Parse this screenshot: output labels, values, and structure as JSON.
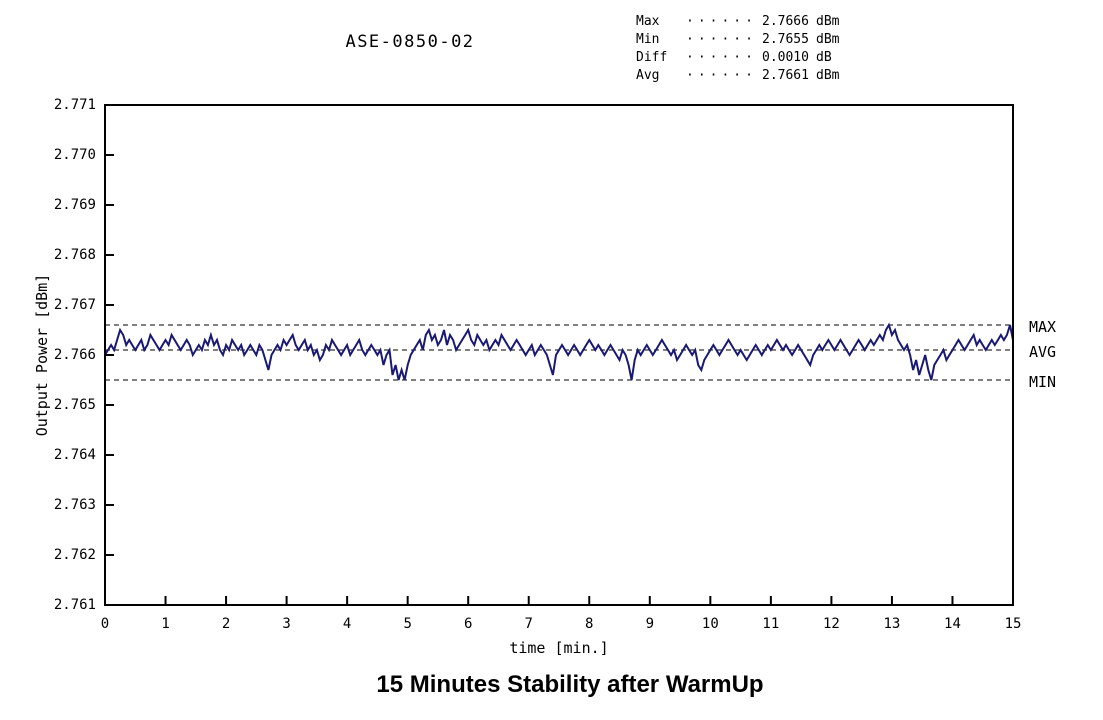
{
  "header": {
    "title": "ASE-0850-02"
  },
  "stats": {
    "rows": [
      {
        "label": "Max",
        "dots": "······",
        "value": "2.7666",
        "unit": "dBm"
      },
      {
        "label": "Min",
        "dots": "······",
        "value": "2.7655",
        "unit": "dBm"
      },
      {
        "label": "Diff",
        "dots": "······",
        "value": "0.0010",
        "unit": "dB"
      },
      {
        "label": "Avg",
        "dots": "······",
        "value": "2.7661",
        "unit": "dBm"
      }
    ]
  },
  "footer": {
    "title": "15 Minutes Stability after WarmUp"
  },
  "chart_data": {
    "type": "line",
    "title": "ASE-0850-02",
    "xlabel": "time [min.]",
    "ylabel": "Output Power [dBm]",
    "xlim": [
      0,
      15
    ],
    "ylim": [
      2.761,
      2.771
    ],
    "xticks": [
      "0",
      "1",
      "2",
      "3",
      "4",
      "5",
      "6",
      "7",
      "8",
      "9",
      "10",
      "11",
      "12",
      "13",
      "14",
      "15"
    ],
    "yticks": [
      "2.761",
      "2.762",
      "2.763",
      "2.764",
      "2.765",
      "2.766",
      "2.767",
      "2.768",
      "2.769",
      "2.770",
      "2.771"
    ],
    "grid": false,
    "legend": "none",
    "stats": {
      "max_dbm": 2.7666,
      "min_dbm": 2.7655,
      "diff_db": 0.001,
      "avg_dbm": 2.7661
    },
    "ref_lines": [
      {
        "label": "MAX",
        "value": 2.7666
      },
      {
        "label": "AVG",
        "value": 2.7661
      },
      {
        "label": "MIN",
        "value": 2.7655
      }
    ],
    "x_start": 0,
    "x_step_min": 0.05,
    "series": [
      {
        "name": "Output Power",
        "color": "#191975",
        "y_base": 2.766,
        "y_step": 0.0001,
        "offsets": [
          0,
          1,
          2,
          1,
          3,
          5,
          4,
          2,
          3,
          2,
          1,
          2,
          3,
          1,
          2,
          4,
          3,
          2,
          1,
          2,
          3,
          2,
          4,
          3,
          2,
          1,
          2,
          3,
          2,
          0,
          1,
          2,
          1,
          3,
          2,
          4,
          2,
          3,
          1,
          0,
          2,
          1,
          3,
          2,
          1,
          2,
          0,
          1,
          2,
          1,
          0,
          2,
          1,
          -1,
          -3,
          0,
          1,
          2,
          1,
          3,
          2,
          3,
          4,
          2,
          1,
          2,
          3,
          1,
          2,
          0,
          1,
          -1,
          0,
          2,
          1,
          3,
          2,
          1,
          0,
          1,
          2,
          0,
          1,
          2,
          3,
          1,
          0,
          1,
          2,
          1,
          0,
          1,
          -2,
          0,
          1,
          -4,
          -2,
          -5,
          -3,
          -5,
          -2,
          0,
          1,
          2,
          3,
          1,
          4,
          5,
          3,
          4,
          2,
          3,
          5,
          2,
          4,
          3,
          1,
          2,
          3,
          4,
          5,
          3,
          2,
          4,
          3,
          2,
          3,
          1,
          2,
          3,
          2,
          4,
          3,
          2,
          1,
          2,
          3,
          2,
          1,
          0,
          1,
          2,
          0,
          1,
          2,
          1,
          0,
          -2,
          -4,
          0,
          1,
          2,
          1,
          0,
          1,
          2,
          1,
          0,
          1,
          2,
          3,
          2,
          1,
          2,
          1,
          0,
          1,
          2,
          1,
          0,
          -1,
          1,
          0,
          -2,
          -5,
          -1,
          1,
          0,
          1,
          2,
          1,
          0,
          1,
          2,
          3,
          2,
          1,
          0,
          1,
          -1,
          0,
          1,
          2,
          1,
          0,
          1,
          -2,
          -3,
          -1,
          0,
          1,
          2,
          1,
          0,
          1,
          2,
          3,
          2,
          1,
          0,
          1,
          0,
          -1,
          0,
          1,
          2,
          1,
          0,
          1,
          2,
          1,
          2,
          3,
          2,
          1,
          2,
          1,
          0,
          1,
          2,
          1,
          0,
          -1,
          -2,
          0,
          1,
          2,
          1,
          2,
          3,
          2,
          1,
          2,
          3,
          2,
          1,
          0,
          1,
          2,
          3,
          2,
          1,
          2,
          3,
          2,
          3,
          4,
          3,
          5,
          6,
          4,
          5,
          3,
          2,
          1,
          2,
          0,
          -3,
          -1,
          -4,
          -2,
          0,
          -3,
          -5,
          -2,
          -1,
          0,
          1,
          -1,
          0,
          1,
          2,
          3,
          2,
          1,
          2,
          3,
          4,
          2,
          3,
          2,
          1,
          2,
          3,
          2,
          3,
          4,
          3,
          4,
          6,
          3
        ]
      }
    ]
  }
}
